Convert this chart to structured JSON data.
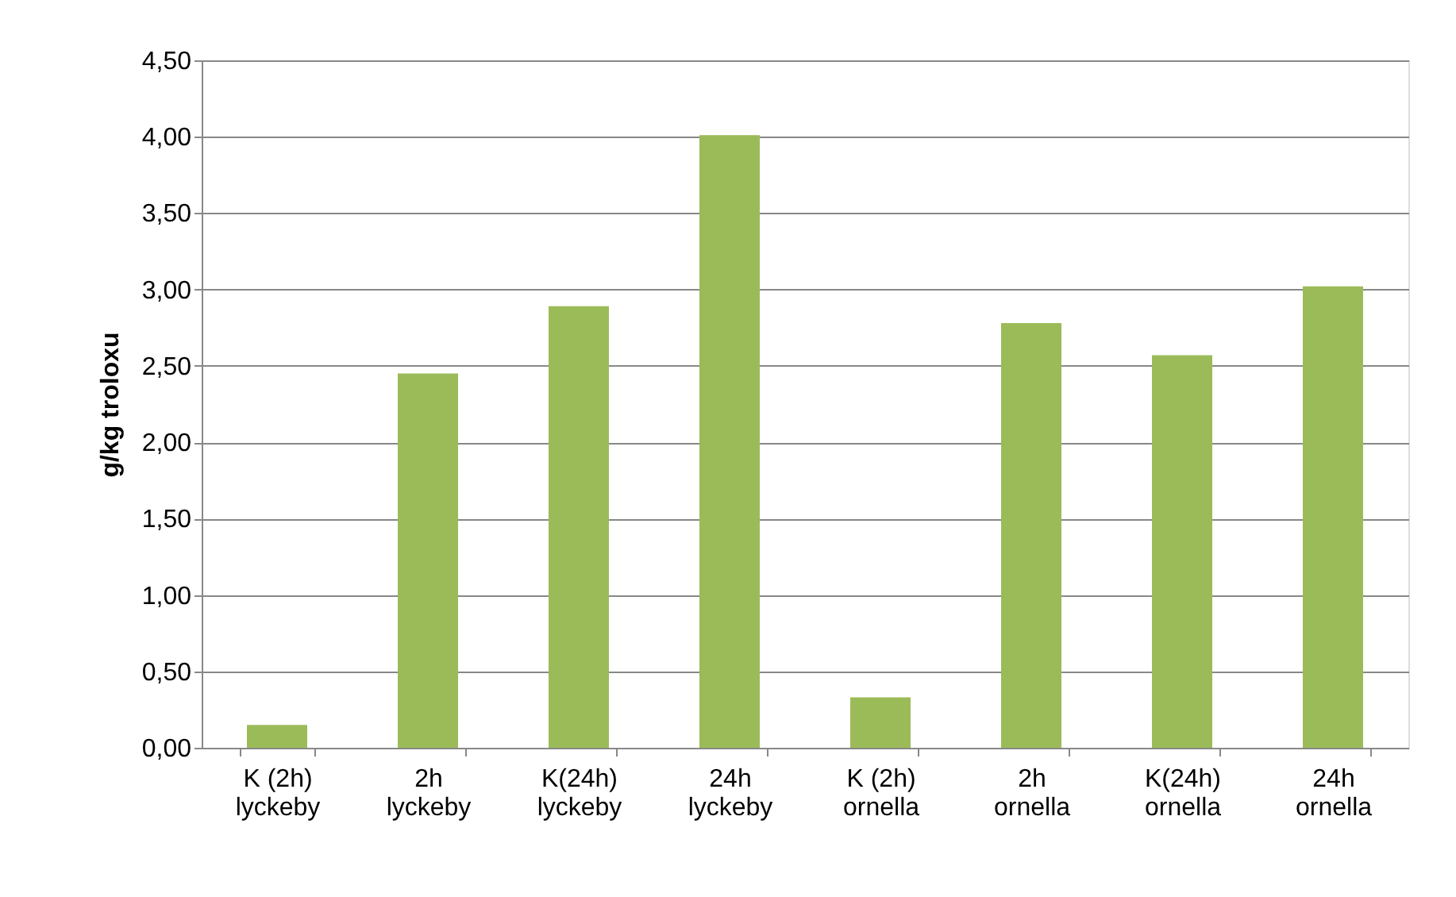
{
  "chart_data": {
    "type": "bar",
    "ylabel": "g/kg troloxu",
    "categories": [
      "K (2h)\nlyckeby",
      "2h\nlyckeby",
      "K(24h)\nlyckeby",
      "24h\nlyckeby",
      "K (2h)\nornella",
      "2h\nornella",
      "K(24h)\nornella",
      "24h\nornella"
    ],
    "values": [
      0.15,
      2.45,
      2.89,
      4.01,
      0.33,
      2.78,
      2.57,
      3.02
    ],
    "color": "#9bbb59",
    "ylim": [
      0,
      4.5
    ],
    "yticks": [
      {
        "value": 0,
        "label": "0,00"
      },
      {
        "value": 0.5,
        "label": "0,50"
      },
      {
        "value": 1,
        "label": "1,00"
      },
      {
        "value": 1.5,
        "label": "1,50"
      },
      {
        "value": 2,
        "label": "2,00"
      },
      {
        "value": 2.5,
        "label": "2,50"
      },
      {
        "value": 3,
        "label": "3,00"
      },
      {
        "value": 3.5,
        "label": "3,50"
      },
      {
        "value": 4,
        "label": "4,00"
      },
      {
        "value": 4.5,
        "label": "4,50"
      }
    ],
    "grid": "y"
  }
}
